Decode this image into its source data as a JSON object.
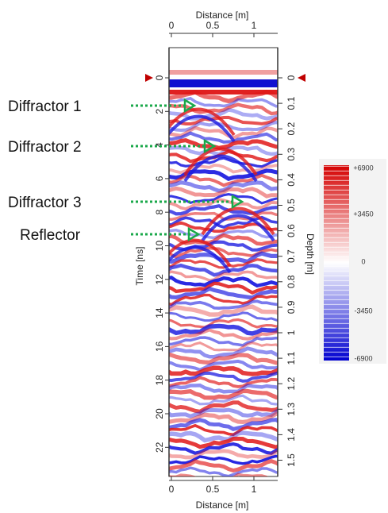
{
  "top_axis": {
    "label": "Distance [m]",
    "ticks": [
      "0",
      "0.5",
      "1"
    ]
  },
  "bottom_axis": {
    "label": "Distance [m]",
    "ticks": [
      "0",
      "0.5",
      "1"
    ]
  },
  "left_axis": {
    "label": "Time [ns]",
    "ticks": [
      "0",
      "2",
      "4",
      "6",
      "8",
      "10",
      "12",
      "14",
      "16",
      "18",
      "20",
      "22"
    ]
  },
  "right_axis": {
    "label": "Depth [m]",
    "ticks": [
      "0",
      "0.1",
      "0.2",
      "0.3",
      "0.4",
      "0.5",
      "0.6",
      "0.7",
      "0.8",
      "0.9",
      "1",
      "1.1",
      "1.2",
      "1.3",
      "1.4",
      "1.5"
    ]
  },
  "colorbar": {
    "labels": [
      "+6900",
      "+3450",
      "0",
      "-3450",
      "-6900"
    ]
  },
  "annotations": [
    "Diffractor 1",
    "Diffractor 2",
    "Diffractor 3",
    "Reflector"
  ]
}
